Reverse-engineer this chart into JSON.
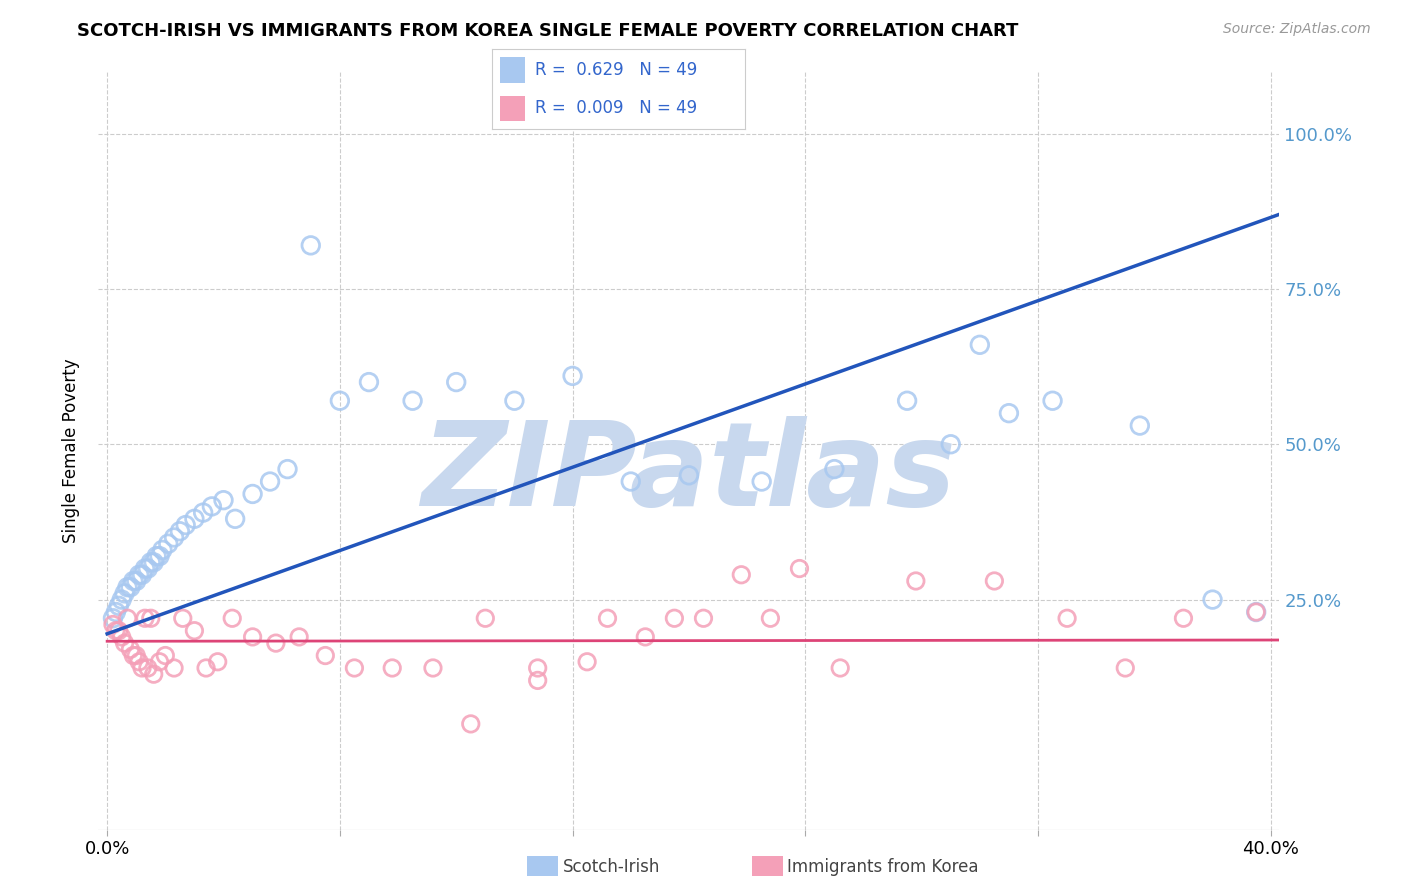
{
  "title": "SCOTCH-IRISH VS IMMIGRANTS FROM KOREA SINGLE FEMALE POVERTY CORRELATION CHART",
  "source": "Source: ZipAtlas.com",
  "ylabel": "Single Female Poverty",
  "xlim": [
    -0.003,
    0.403
  ],
  "ylim": [
    -0.12,
    1.1
  ],
  "blue_R": 0.629,
  "blue_N": 49,
  "pink_R": 0.009,
  "pink_N": 49,
  "blue_color": "#A8C8F0",
  "pink_color": "#F4A0B8",
  "blue_line_color": "#2255BB",
  "pink_line_color": "#DD4477",
  "watermark": "ZIPatlas",
  "watermark_color": "#C8D8EE",
  "legend_blue_label": "Scotch-Irish",
  "legend_pink_label": "Immigrants from Korea",
  "grid_color": "#CCCCCC",
  "right_tick_color": "#5599CC",
  "blue_line_x0": 0.0,
  "blue_line_y0": 0.195,
  "blue_line_x1": 0.403,
  "blue_line_y1": 0.87,
  "pink_line_x0": 0.0,
  "pink_line_y0": 0.183,
  "pink_line_x1": 0.403,
  "pink_line_y1": 0.185,
  "blue_scatter_x": [
    0.002,
    0.003,
    0.004,
    0.005,
    0.006,
    0.007,
    0.008,
    0.009,
    0.01,
    0.011,
    0.012,
    0.013,
    0.014,
    0.015,
    0.016,
    0.017,
    0.018,
    0.019,
    0.021,
    0.023,
    0.025,
    0.027,
    0.03,
    0.033,
    0.036,
    0.04,
    0.044,
    0.05,
    0.056,
    0.062,
    0.07,
    0.08,
    0.09,
    0.105,
    0.12,
    0.14,
    0.16,
    0.18,
    0.2,
    0.225,
    0.25,
    0.275,
    0.3,
    0.325,
    0.29,
    0.31,
    0.355,
    0.38,
    0.395
  ],
  "blue_scatter_y": [
    0.22,
    0.23,
    0.24,
    0.25,
    0.26,
    0.27,
    0.27,
    0.28,
    0.28,
    0.29,
    0.29,
    0.3,
    0.3,
    0.31,
    0.31,
    0.32,
    0.32,
    0.33,
    0.34,
    0.35,
    0.36,
    0.37,
    0.38,
    0.39,
    0.4,
    0.41,
    0.38,
    0.42,
    0.44,
    0.46,
    0.82,
    0.57,
    0.6,
    0.57,
    0.6,
    0.57,
    0.61,
    0.44,
    0.45,
    0.44,
    0.46,
    0.57,
    0.66,
    0.57,
    0.5,
    0.55,
    0.53,
    0.25,
    0.23
  ],
  "pink_scatter_x": [
    0.002,
    0.003,
    0.004,
    0.005,
    0.006,
    0.007,
    0.008,
    0.009,
    0.01,
    0.011,
    0.012,
    0.013,
    0.014,
    0.015,
    0.016,
    0.018,
    0.02,
    0.023,
    0.026,
    0.03,
    0.034,
    0.038,
    0.043,
    0.05,
    0.058,
    0.066,
    0.075,
    0.085,
    0.098,
    0.112,
    0.13,
    0.148,
    0.165,
    0.185,
    0.205,
    0.228,
    0.252,
    0.278,
    0.305,
    0.33,
    0.35,
    0.37,
    0.238,
    0.218,
    0.195,
    0.172,
    0.148,
    0.125,
    0.395
  ],
  "pink_scatter_y": [
    0.21,
    0.2,
    0.2,
    0.19,
    0.18,
    0.22,
    0.17,
    0.16,
    0.16,
    0.15,
    0.14,
    0.22,
    0.14,
    0.22,
    0.13,
    0.15,
    0.16,
    0.14,
    0.22,
    0.2,
    0.14,
    0.15,
    0.22,
    0.19,
    0.18,
    0.19,
    0.16,
    0.14,
    0.14,
    0.14,
    0.22,
    0.14,
    0.15,
    0.19,
    0.22,
    0.22,
    0.14,
    0.28,
    0.28,
    0.22,
    0.14,
    0.22,
    0.3,
    0.29,
    0.22,
    0.22,
    0.12,
    0.05,
    0.23
  ]
}
